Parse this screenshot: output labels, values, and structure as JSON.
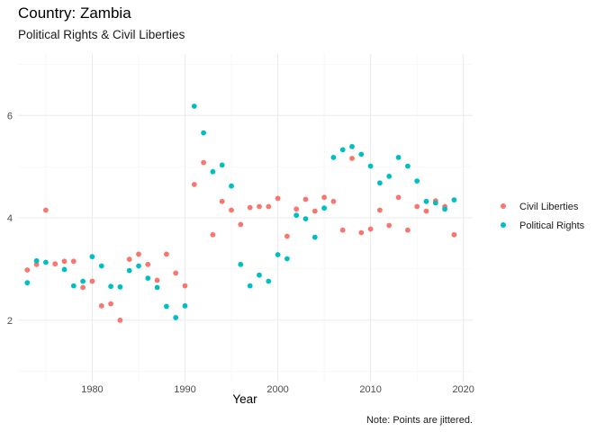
{
  "chart_data": {
    "type": "scatter",
    "title": "Country: Zambia",
    "subtitle": "Political Rights & Civil Liberties",
    "xlabel": "Year",
    "ylabel": "",
    "caption": "Note: Points are jittered.",
    "xlim": [
      1972,
      2021
    ],
    "ylim": [
      0.8,
      7.2
    ],
    "x_ticks": [
      1980,
      1990,
      2000,
      2010,
      2020
    ],
    "y_ticks": [
      2,
      4,
      6
    ],
    "grid": true,
    "legend_position": "right",
    "series": [
      {
        "name": "Civil Liberties",
        "color": "#F8766D",
        "points": [
          [
            1973,
            2.98
          ],
          [
            1974,
            3.09
          ],
          [
            1975,
            4.15
          ],
          [
            1976,
            3.1
          ],
          [
            1977,
            3.15
          ],
          [
            1978,
            3.15
          ],
          [
            1979,
            2.64
          ],
          [
            1980,
            2.76
          ],
          [
            1981,
            2.28
          ],
          [
            1982,
            2.32
          ],
          [
            1983,
            2.0
          ],
          [
            1984,
            3.19
          ],
          [
            1985,
            3.29
          ],
          [
            1986,
            3.09
          ],
          [
            1987,
            2.78
          ],
          [
            1988,
            3.29
          ],
          [
            1989,
            2.92
          ],
          [
            1990,
            2.67
          ],
          [
            1991,
            4.65
          ],
          [
            1992,
            5.08
          ],
          [
            1993,
            3.67
          ],
          [
            1994,
            4.32
          ],
          [
            1995,
            4.15
          ],
          [
            1996,
            3.87
          ],
          [
            1997,
            4.2
          ],
          [
            1998,
            4.22
          ],
          [
            1999,
            4.22
          ],
          [
            2000,
            4.38
          ],
          [
            2001,
            3.64
          ],
          [
            2002,
            4.17
          ],
          [
            2003,
            4.36
          ],
          [
            2004,
            4.13
          ],
          [
            2005,
            4.4
          ],
          [
            2006,
            4.32
          ],
          [
            2007,
            3.76
          ],
          [
            2008,
            5.16
          ],
          [
            2009,
            3.71
          ],
          [
            2010,
            3.78
          ],
          [
            2011,
            4.15
          ],
          [
            2012,
            3.85
          ],
          [
            2013,
            4.4
          ],
          [
            2014,
            3.76
          ],
          [
            2015,
            4.22
          ],
          [
            2016,
            4.13
          ],
          [
            2017,
            4.33
          ],
          [
            2018,
            4.22
          ],
          [
            2019,
            3.67
          ]
        ]
      },
      {
        "name": "Political Rights",
        "color": "#00BFC4",
        "points": [
          [
            1973,
            2.73
          ],
          [
            1974,
            3.16
          ],
          [
            1975,
            3.13
          ],
          [
            1977,
            2.99
          ],
          [
            1978,
            2.67
          ],
          [
            1979,
            2.76
          ],
          [
            1980,
            3.24
          ],
          [
            1981,
            3.06
          ],
          [
            1982,
            2.66
          ],
          [
            1983,
            2.65
          ],
          [
            1984,
            2.97
          ],
          [
            1985,
            3.06
          ],
          [
            1986,
            2.82
          ],
          [
            1987,
            2.64
          ],
          [
            1988,
            2.27
          ],
          [
            1989,
            2.05
          ],
          [
            1990,
            2.28
          ],
          [
            1991,
            6.18
          ],
          [
            1992,
            5.66
          ],
          [
            1993,
            4.9
          ],
          [
            1994,
            5.03
          ],
          [
            1995,
            4.62
          ],
          [
            1996,
            3.09
          ],
          [
            1997,
            2.67
          ],
          [
            1998,
            2.88
          ],
          [
            1999,
            2.76
          ],
          [
            2000,
            3.28
          ],
          [
            2001,
            3.2
          ],
          [
            2002,
            4.05
          ],
          [
            2003,
            3.98
          ],
          [
            2004,
            3.62
          ],
          [
            2005,
            4.19
          ],
          [
            2006,
            5.18
          ],
          [
            2007,
            5.33
          ],
          [
            2008,
            5.39
          ],
          [
            2009,
            5.24
          ],
          [
            2010,
            5.01
          ],
          [
            2011,
            4.68
          ],
          [
            2012,
            4.81
          ],
          [
            2013,
            5.18
          ],
          [
            2014,
            5.01
          ],
          [
            2015,
            4.72
          ],
          [
            2016,
            4.32
          ],
          [
            2017,
            4.29
          ],
          [
            2018,
            4.17
          ],
          [
            2019,
            4.35
          ]
        ]
      }
    ]
  }
}
